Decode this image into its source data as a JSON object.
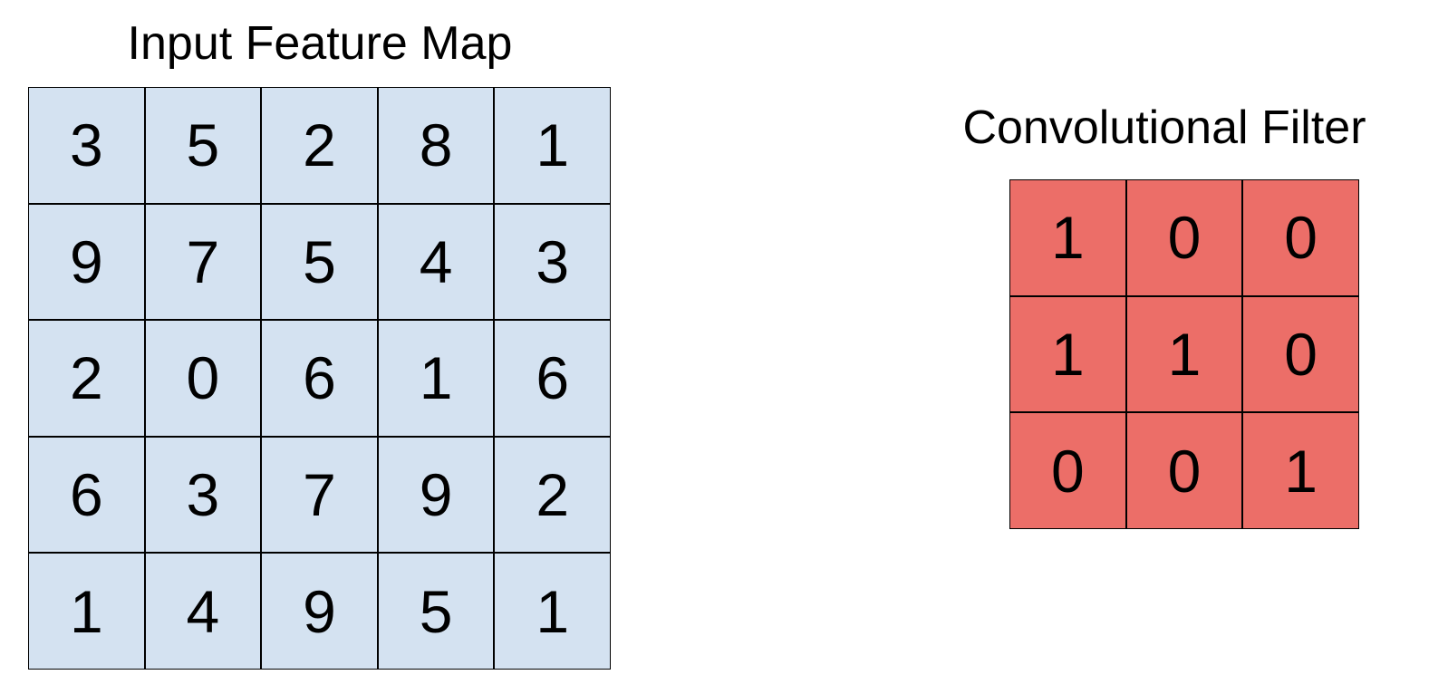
{
  "input_feature_map": {
    "title": "Input Feature Map",
    "cell_color": "#d4e2f1",
    "rows": [
      [
        "3",
        "5",
        "2",
        "8",
        "1"
      ],
      [
        "9",
        "7",
        "5",
        "4",
        "3"
      ],
      [
        "2",
        "0",
        "6",
        "1",
        "6"
      ],
      [
        "6",
        "3",
        "7",
        "9",
        "2"
      ],
      [
        "1",
        "4",
        "9",
        "5",
        "1"
      ]
    ]
  },
  "convolutional_filter": {
    "title": "Convolutional Filter",
    "cell_color": "#ec6e68",
    "rows": [
      [
        "1",
        "0",
        "0"
      ],
      [
        "1",
        "1",
        "0"
      ],
      [
        "0",
        "0",
        "1"
      ]
    ]
  }
}
